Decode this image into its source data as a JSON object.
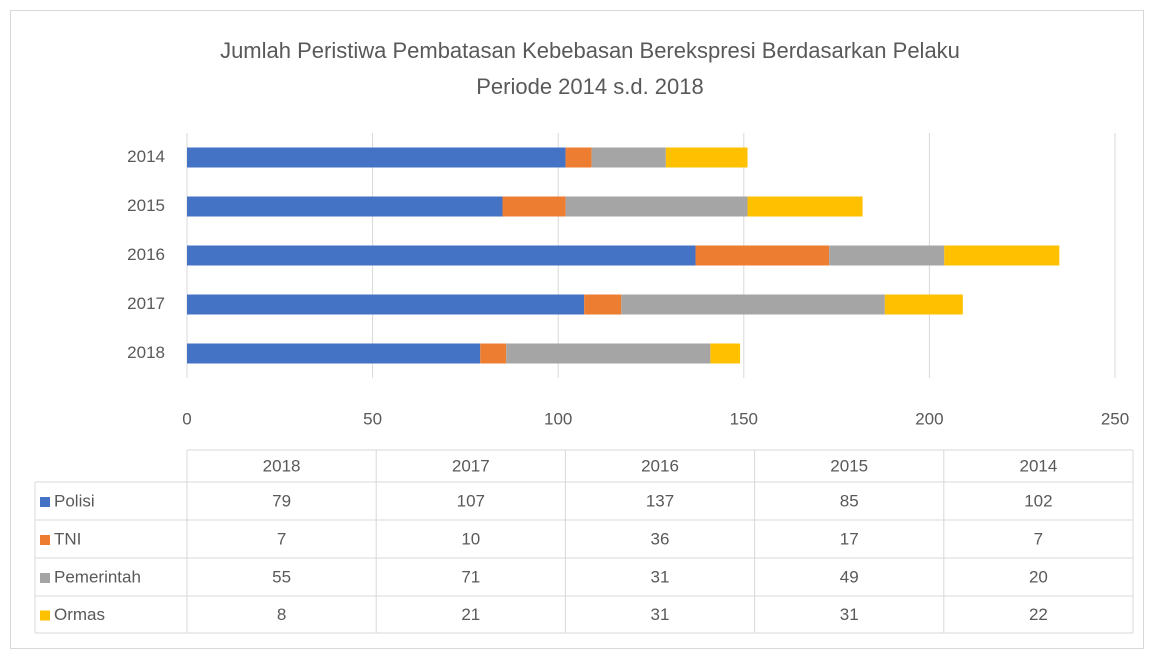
{
  "chart_data": {
    "type": "stacked-bar-horizontal",
    "title": [
      "Jumlah Peristiwa Pembatasan Kebebasan Berekspresi Berdasarkan Pelaku",
      "Periode 2014 s.d. 2018"
    ],
    "categories": [
      "2018",
      "2017",
      "2016",
      "2015",
      "2014"
    ],
    "series": [
      {
        "name": "Polisi",
        "color": "#4472c4",
        "values": [
          79,
          107,
          137,
          85,
          102
        ]
      },
      {
        "name": "TNI",
        "color": "#ed7d31",
        "values": [
          7,
          10,
          36,
          17,
          7
        ]
      },
      {
        "name": "Pemerintah",
        "color": "#a5a5a5",
        "values": [
          55,
          71,
          31,
          49,
          20
        ]
      },
      {
        "name": "Ormas",
        "color": "#ffc000",
        "values": [
          8,
          21,
          31,
          31,
          22
        ]
      }
    ],
    "xlim": [
      0,
      250
    ],
    "xticks": [
      0,
      50,
      100,
      150,
      200,
      250
    ],
    "grid": true,
    "data_table": true
  }
}
